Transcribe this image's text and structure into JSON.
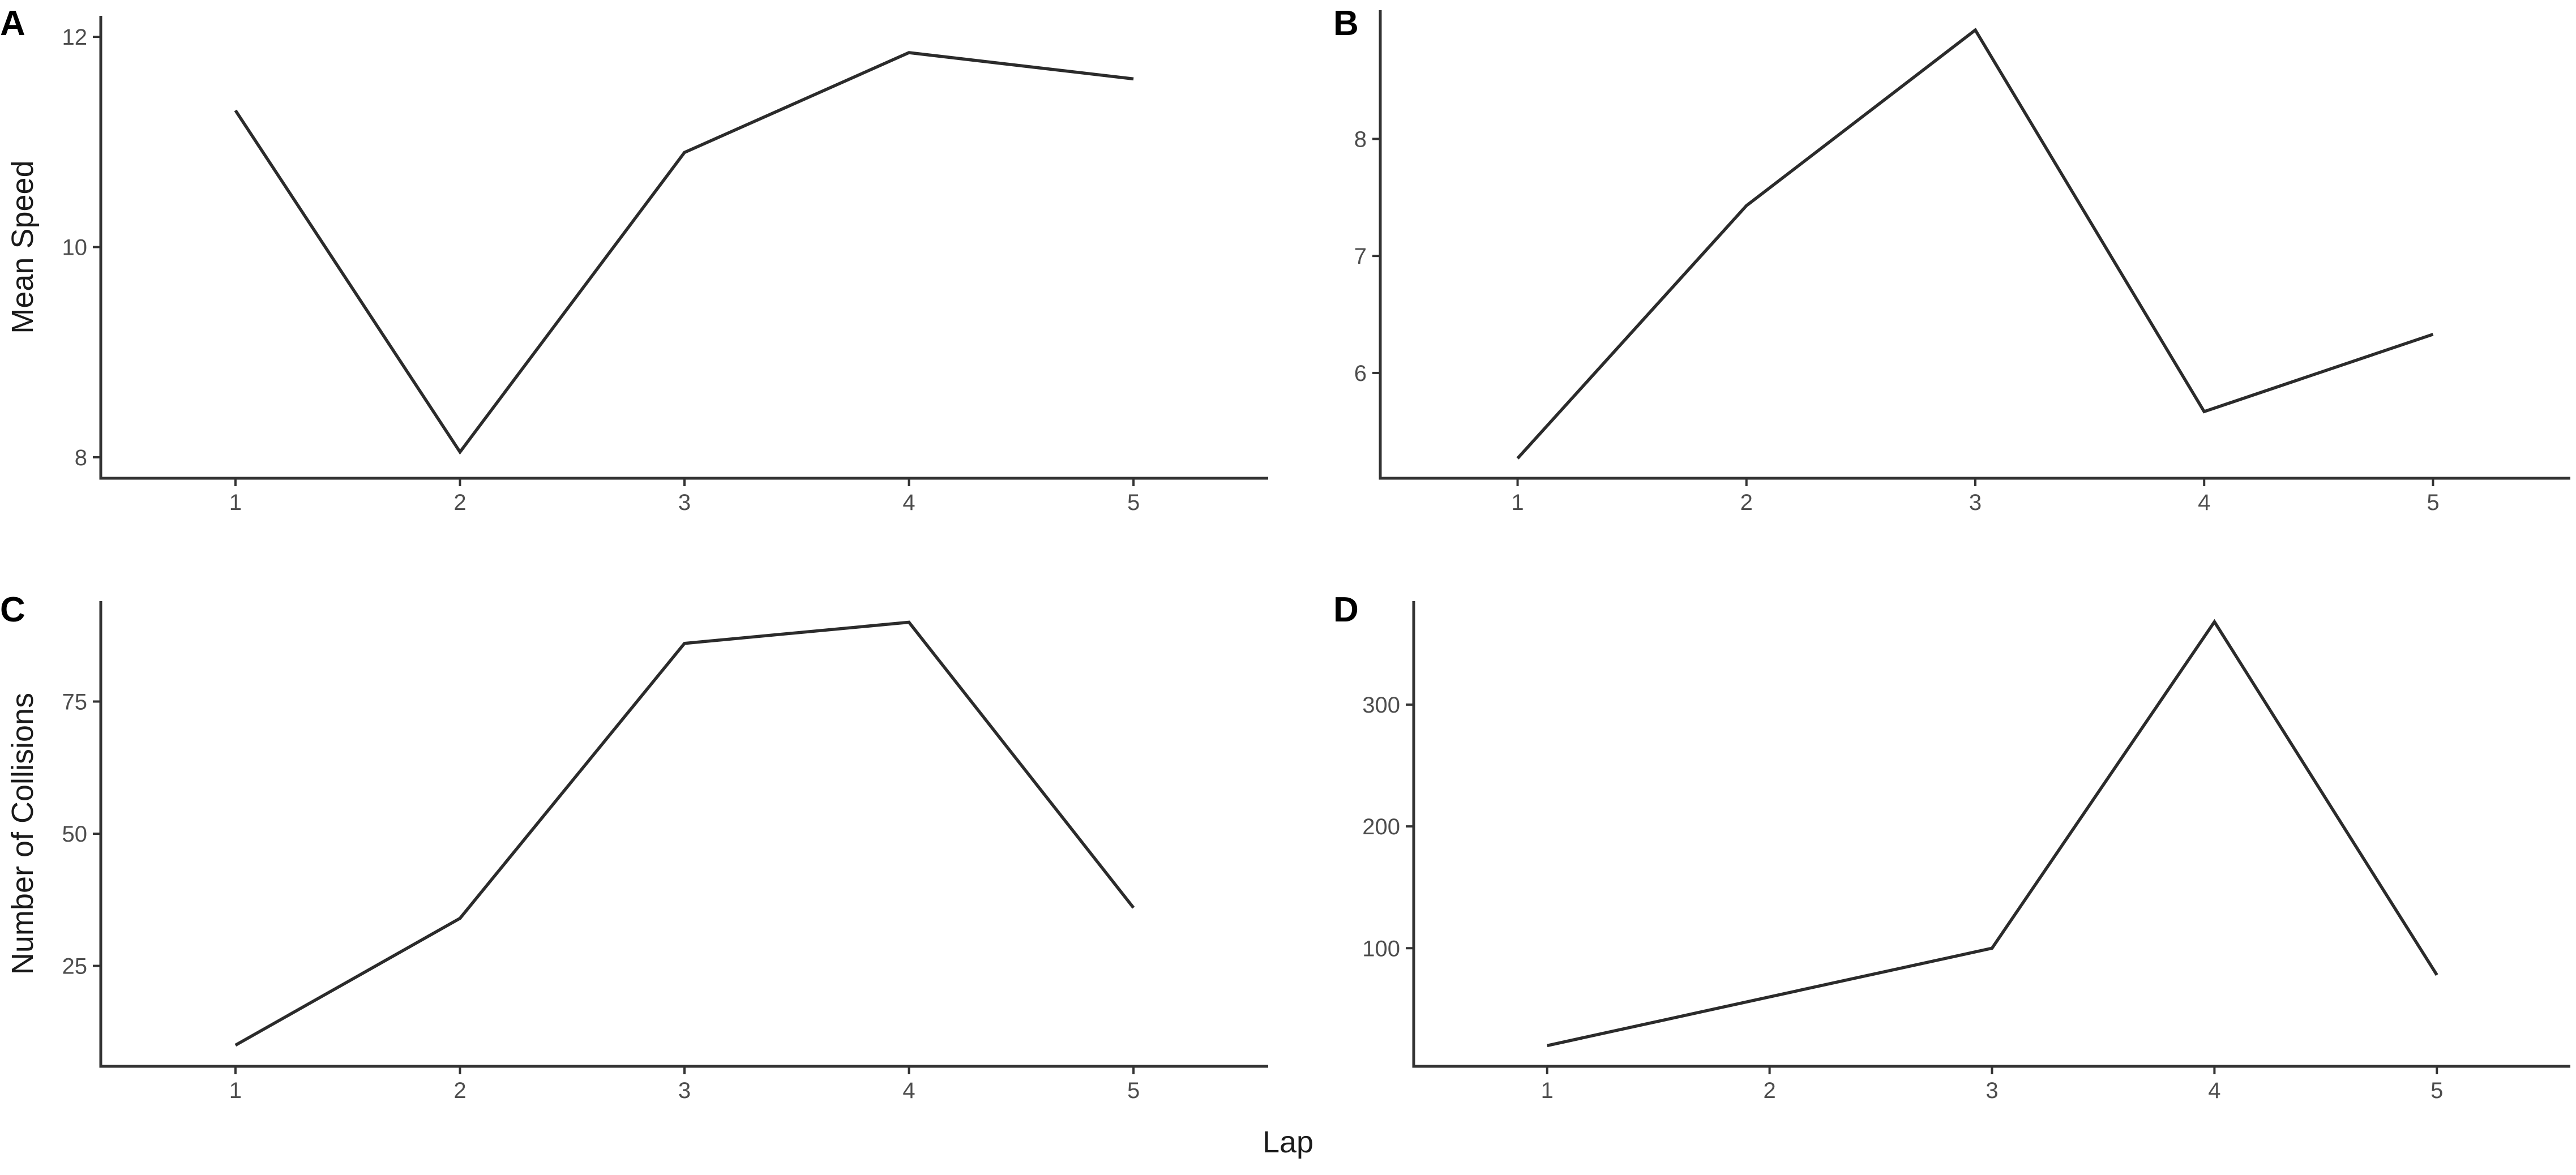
{
  "figure": {
    "shared_xlabel": "Lap"
  },
  "chart_data": [
    {
      "panel": "A",
      "type": "line",
      "x": [
        1,
        2,
        3,
        4,
        5
      ],
      "series": [
        {
          "values": [
            11.3,
            8.05,
            10.9,
            11.85,
            11.6
          ]
        }
      ],
      "xlabel": "",
      "ylabel": "Mean Speed",
      "xticks": [
        "1",
        "2",
        "3",
        "4",
        "5"
      ],
      "yticks": [
        8,
        10,
        12
      ],
      "xlim": [
        0.4,
        5.6
      ],
      "ylim": [
        7.8,
        12.2
      ],
      "grid": false
    },
    {
      "panel": "B",
      "type": "line",
      "x": [
        1,
        2,
        3,
        4,
        5
      ],
      "series": [
        {
          "values": [
            5.27,
            7.43,
            8.93,
            5.67,
            6.33
          ]
        }
      ],
      "xlabel": "",
      "ylabel": "",
      "xticks": [
        "1",
        "2",
        "3",
        "4",
        "5"
      ],
      "yticks": [
        6,
        7,
        8
      ],
      "xlim": [
        0.4,
        5.6
      ],
      "ylim": [
        5.1,
        9.1
      ],
      "grid": false
    },
    {
      "panel": "C",
      "type": "line",
      "x": [
        1,
        2,
        3,
        4,
        5
      ],
      "series": [
        {
          "values": [
            10,
            34,
            86,
            90,
            36
          ]
        }
      ],
      "xlabel": "",
      "ylabel": "Number of Collisions",
      "xticks": [
        "1",
        "2",
        "3",
        "4",
        "5"
      ],
      "yticks": [
        25,
        50,
        75
      ],
      "xlim": [
        0.4,
        5.6
      ],
      "ylim": [
        6,
        94
      ],
      "grid": false
    },
    {
      "panel": "D",
      "type": "line",
      "x": [
        1,
        2,
        3,
        4,
        5
      ],
      "series": [
        {
          "values": [
            20,
            60,
            100,
            368,
            78
          ]
        }
      ],
      "xlabel": "",
      "ylabel": "",
      "xticks": [
        "1",
        "2",
        "3",
        "4",
        "5"
      ],
      "yticks": [
        100,
        200,
        300
      ],
      "xlim": [
        0.4,
        5.6
      ],
      "ylim": [
        3,
        385
      ],
      "grid": false
    }
  ]
}
